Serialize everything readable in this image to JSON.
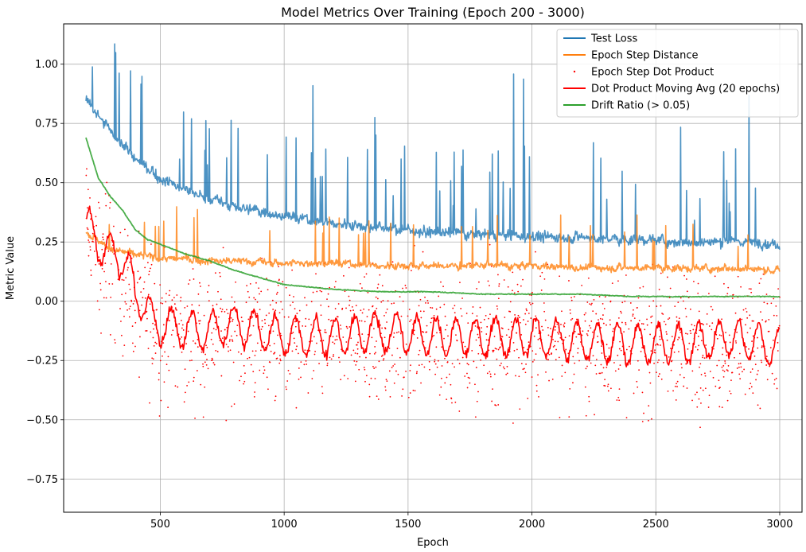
{
  "chart_data": {
    "type": "line",
    "title": "Model Metrics Over Training (Epoch 200 - 3000)",
    "xlabel": "Epoch",
    "ylabel": "Metric Value",
    "xlim": [
      110,
      3090
    ],
    "ylim": [
      -0.89,
      1.17
    ],
    "xticks": [
      500,
      1000,
      1500,
      2000,
      2500,
      3000
    ],
    "yticks": [
      -0.75,
      -0.5,
      -0.25,
      0.0,
      0.25,
      0.5,
      0.75,
      1.0
    ],
    "xtick_labels": [
      "500",
      "1000",
      "1500",
      "2000",
      "2500",
      "3000"
    ],
    "ytick_labels": [
      "−0.75",
      "−0.50",
      "−0.25",
      "0.00",
      "0.25",
      "0.50",
      "0.75",
      "1.00"
    ],
    "grid": true,
    "legend_position": "top-right",
    "legend": [
      {
        "name": "Test Loss",
        "color": "#1f77b4",
        "style": "line"
      },
      {
        "name": "Epoch Step Distance",
        "color": "#ff7f0e",
        "style": "line"
      },
      {
        "name": "Epoch Step Dot Product",
        "color": "#ff0000",
        "style": "dot"
      },
      {
        "name": "Dot Product Moving Avg (20 epochs)",
        "color": "#ff0000",
        "style": "line"
      },
      {
        "name": "Drift Ratio (> 0.05)",
        "color": "#2ca02c",
        "style": "line"
      }
    ],
    "series": [
      {
        "name": "Test Loss",
        "color": "#1f77b4",
        "style": "line",
        "x": [
          200,
          250,
          300,
          350,
          400,
          450,
          500,
          600,
          700,
          800,
          900,
          1000,
          1100,
          1200,
          1300,
          1400,
          1500,
          1600,
          1700,
          1800,
          1900,
          2000,
          2100,
          2200,
          2300,
          2400,
          2500,
          2600,
          2700,
          2800,
          2900,
          3000
        ],
        "y": [
          0.85,
          0.78,
          0.72,
          0.66,
          0.6,
          0.56,
          0.52,
          0.47,
          0.43,
          0.4,
          0.38,
          0.36,
          0.34,
          0.33,
          0.32,
          0.31,
          0.3,
          0.29,
          0.29,
          0.28,
          0.28,
          0.27,
          0.27,
          0.27,
          0.26,
          0.26,
          0.26,
          0.25,
          0.25,
          0.25,
          0.25,
          0.24
        ],
        "spikes": [
          [
            225,
            0.99
          ],
          [
            320,
            1.07
          ],
          [
            380,
            0.97
          ],
          [
            1115,
            0.91
          ],
          [
            1925,
            0.97
          ],
          [
            1965,
            0.95
          ],
          [
            2875,
            0.88
          ],
          [
            1365,
            0.78
          ],
          [
            2600,
            0.73
          ]
        ]
      },
      {
        "name": "Epoch Step Distance",
        "color": "#ff7f0e",
        "style": "line",
        "x": [
          200,
          300,
          400,
          500,
          600,
          700,
          800,
          1000,
          1200,
          1400,
          1600,
          1800,
          2000,
          2200,
          2400,
          2600,
          2800,
          3000
        ],
        "y": [
          0.29,
          0.22,
          0.2,
          0.18,
          0.18,
          0.17,
          0.17,
          0.16,
          0.16,
          0.15,
          0.15,
          0.15,
          0.15,
          0.14,
          0.14,
          0.14,
          0.14,
          0.13
        ]
      },
      {
        "name": "Epoch Step Dot Product",
        "color": "#ff0000",
        "style": "scatter",
        "x": [
          200,
          250,
          300,
          350,
          400,
          450,
          500,
          600,
          800,
          1000,
          1200,
          1500,
          1800,
          2000,
          2200,
          2500,
          2800,
          3000
        ],
        "y": [
          0.3,
          0.2,
          0.15,
          0.1,
          -0.02,
          -0.08,
          -0.1,
          -0.12,
          -0.13,
          -0.15,
          -0.15,
          -0.14,
          -0.15,
          -0.15,
          -0.16,
          -0.17,
          -0.16,
          -0.17
        ],
        "spread": 0.27
      },
      {
        "name": "Dot Product Moving Avg (20 epochs)",
        "color": "#ff0000",
        "style": "line",
        "x": [
          200,
          250,
          300,
          350,
          400,
          450,
          500,
          600,
          700,
          800,
          900,
          1000,
          1200,
          1400,
          1600,
          1800,
          2000,
          2200,
          2400,
          2600,
          2800,
          3000
        ],
        "y": [
          0.33,
          0.25,
          0.2,
          0.18,
          0.05,
          -0.05,
          -0.1,
          -0.12,
          -0.12,
          -0.1,
          -0.12,
          -0.15,
          -0.15,
          -0.13,
          -0.15,
          -0.15,
          -0.15,
          -0.17,
          -0.18,
          -0.18,
          -0.15,
          -0.2
        ]
      },
      {
        "name": "Drift Ratio (> 0.05)",
        "color": "#2ca02c",
        "style": "line",
        "x": [
          200,
          250,
          300,
          350,
          400,
          450,
          500,
          550,
          600,
          700,
          800,
          900,
          1000,
          1100,
          1200,
          1400,
          1600,
          1800,
          2000,
          2200,
          2400,
          2600,
          2800,
          3000
        ],
        "y": [
          0.69,
          0.52,
          0.44,
          0.38,
          0.3,
          0.26,
          0.24,
          0.22,
          0.2,
          0.17,
          0.13,
          0.1,
          0.07,
          0.06,
          0.05,
          0.04,
          0.04,
          0.03,
          0.03,
          0.03,
          0.02,
          0.02,
          0.02,
          0.02
        ]
      }
    ]
  }
}
